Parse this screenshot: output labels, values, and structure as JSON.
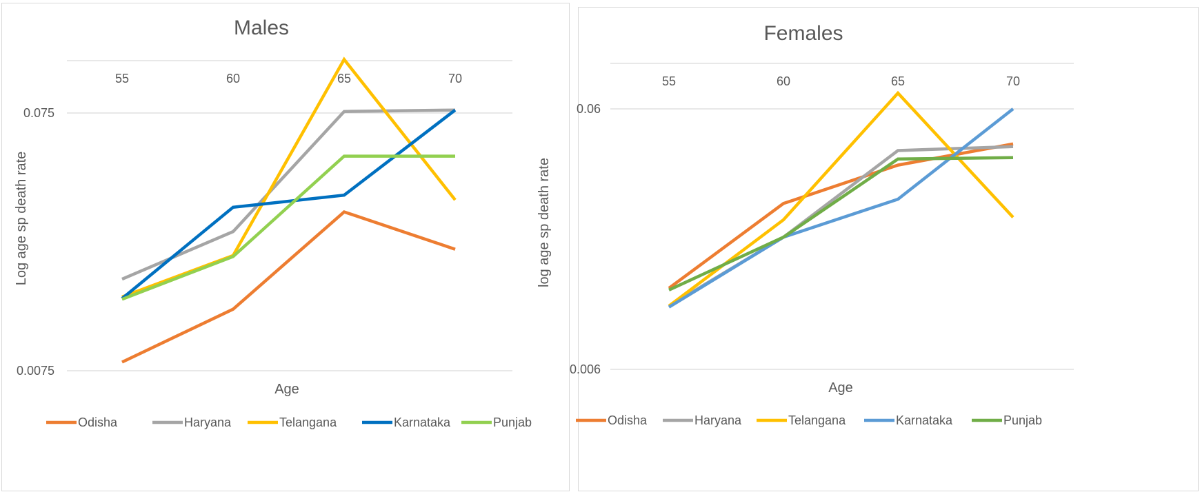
{
  "chart_data": [
    {
      "type": "line",
      "title": "Males",
      "xlabel": "Age",
      "ylabel": "Log age sp death rate",
      "categories": [
        "55",
        "60",
        "65",
        "70"
      ],
      "y_scale": "log",
      "ylim": [
        0.0075,
        0.1
      ],
      "y_ticks": [
        "0.075",
        "0.0075"
      ],
      "x_axis_position": "top",
      "grid": true,
      "legend_position": "bottom",
      "series": [
        {
          "name": "Odisha",
          "color": "#ED7D31",
          "values": [
            0.0081,
            0.013,
            0.031,
            0.0222
          ]
        },
        {
          "name": "Haryana",
          "color": "#A5A5A5",
          "values": [
            0.017,
            0.026,
            0.076,
            0.077
          ]
        },
        {
          "name": "Telangana",
          "color": "#FFC000",
          "values": [
            0.0145,
            0.021,
            0.121,
            0.0345
          ]
        },
        {
          "name": "Karnataka",
          "color": "#0070C0",
          "values": [
            0.0143,
            0.0323,
            0.036,
            0.077
          ]
        },
        {
          "name": "Punjab",
          "color": "#92D050",
          "values": [
            0.0142,
            0.0208,
            0.051,
            0.051
          ]
        }
      ]
    },
    {
      "type": "line",
      "title": "Females",
      "xlabel": "Age",
      "ylabel": "log age sp death rate",
      "categories": [
        "55",
        "60",
        "65",
        "70"
      ],
      "y_scale": "log",
      "ylim": [
        0.006,
        0.08
      ],
      "y_ticks": [
        "0.06",
        "0.006"
      ],
      "x_axis_position": "top",
      "grid": true,
      "legend_position": "bottom",
      "series": [
        {
          "name": "Odisha",
          "color": "#ED7D31",
          "values": [
            0.0123,
            0.026,
            0.0365,
            0.044
          ]
        },
        {
          "name": "Haryana",
          "color": "#A5A5A5",
          "values": [
            0.0105,
            0.0193,
            0.0415,
            0.043
          ]
        },
        {
          "name": "Telangana",
          "color": "#FFC000",
          "values": [
            0.0105,
            0.0225,
            0.069,
            0.023
          ]
        },
        {
          "name": "Karnataka",
          "color": "#5B9BD5",
          "values": [
            0.0104,
            0.0193,
            0.027,
            0.06
          ]
        },
        {
          "name": "Punjab",
          "color": "#70AD47",
          "values": [
            0.0121,
            0.0193,
            0.0385,
            0.039
          ]
        }
      ]
    }
  ]
}
